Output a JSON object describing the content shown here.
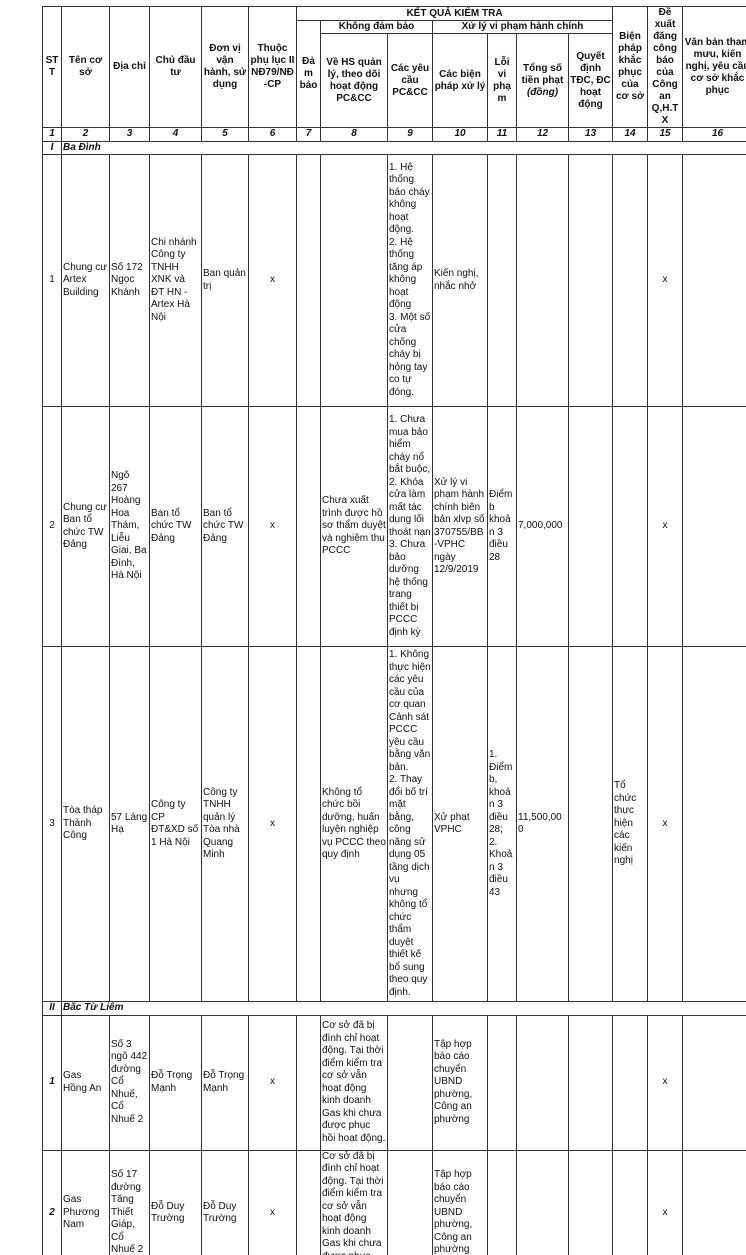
{
  "header": {
    "stt": "STT",
    "ten": "Tên cơ sở",
    "diachi": "Địa chỉ",
    "chudautu": "Chủ đầu tư",
    "donvi": "Đơn vị vận hành, sử dụng",
    "phuluc": "Thuộc phụ lục II NĐ79/NĐ-CP",
    "ketqua": "KẾT QUẢ KIỂM TRA",
    "khongdambao": "Không đảm bảo",
    "xuly": "Xử lý vi phạm hành chính",
    "dambao": "Đảm bảo",
    "hs": "Về HS quản lý, theo dõi hoạt động PC&CC",
    "yeucau": "Các yêu cầu PC&CC",
    "bienphapxl": "Các biện pháp xử lý",
    "loivp": "Lỗi vi phạm",
    "tongtien": "Tổng số tiền phạt",
    "dong": "(đồng)",
    "quyetdinh": "Quyết định TĐC, ĐC hoạt động",
    "bienphapkp": "Biện pháp khắc phục của cơ sở",
    "dexuat": "Đề xuất đăng công báo của Công an Q,H.TX",
    "vanban": "Văn bản tham mưu, kiến nghị, yêu cầu cơ sở khắc phục"
  },
  "col_numbers": [
    "1",
    "2",
    "3",
    "4",
    "5",
    "6",
    "7",
    "8",
    "9",
    "10",
    "11",
    "12",
    "13",
    "14",
    "15",
    "16"
  ],
  "sections": [
    {
      "roman": "I",
      "name": "Ba Đình",
      "rows": [
        {
          "stt": "1",
          "ten": "Chung cư Artex Building",
          "diachi": "Số 172 Ngọc Khánh",
          "chudautu": "Chi nhánh Công ty TNHH XNK và ĐT HN - Artex Hà Nội",
          "donvi": "Ban quản trị",
          "phuluc": "x",
          "dambao": "",
          "hs": "",
          "yeucau": "1. Hệ thống báo cháy không hoạt động.\n2. Hệ thống tăng áp không hoạt động\n3. Một số cửa chống cháy bị hỏng tay co tự đóng.",
          "bienphap": "Kiến nghị, nhắc nhở",
          "loi": "",
          "tien": "",
          "qd": "",
          "kp": "",
          "dexuat": "x",
          "vanban": ""
        },
        {
          "stt": "2",
          "ten": "Chung cư Ban tổ chức TW Đảng",
          "diachi": "Ngõ 267 Hoàng Hoa Thám, Liễu Giai, Ba Đình, Hà Nội",
          "chudautu": "Ban tổ chức TW Đảng",
          "donvi": "Ban tổ chức TW Đảng",
          "phuluc": "x",
          "dambao": "",
          "hs": "Chưa xuất trình được hồ sơ thẩm duyệt và nghiệm thu PCCC",
          "yeucau": "1. Chưa mua bảo hiểm cháy nổ bắt buộc,\n2. Khóa cửa làm mất tác dụng lối thoát nạn\n3. Chưa bảo dưỡng hệ thống trang thiết bị PCCC định kỳ",
          "bienphap": "Xử lý vi phạm hành chính biên bản xlvp số 370755/BB-VPHC ngày 12/9/2019",
          "loi": "Điểm b khoản 3 điều 28",
          "tien": "7,000,000",
          "qd": "",
          "kp": "",
          "dexuat": "x",
          "vanban": ""
        },
        {
          "stt": "3",
          "ten": "Tòa tháp Thành Công",
          "diachi": "57 Láng Hạ",
          "chudautu": "Công ty CP ĐT&XD số 1 Hà Nội",
          "donvi": "Công ty TNHH quản lý Tòa nhà Quang Minh",
          "phuluc": "x",
          "dambao": "",
          "hs": "Không tổ chức bồi dưỡng, huấn luyện nghiệp vụ PCCC theo quy định",
          "yeucau": "1. Không thực hiện các yêu cầu của cơ quan Cảnh sát PCCC yêu cầu bằng văn bản.\n2. Thay đổi bố trí mặt bằng, công năng sử dụng 05 tầng dịch vụ nhưng không tổ chức thẩm duyệt thiết kế bổ sung theo quy định.",
          "bienphap": "Xử phạt VPHC",
          "loi": "1. Điểm b, khoản 3 điều 28;\n2. Khoản 3 điều 43",
          "tien": "11,500,000",
          "qd": "",
          "kp": "Tổ chức thực hiện các kiến nghị",
          "dexuat": "x",
          "vanban": ""
        }
      ]
    },
    {
      "roman": "II",
      "name": "Bắc Từ Liêm",
      "rows": [
        {
          "stt": "1",
          "ten": "Gas Hồng An",
          "diachi": "Số 3 ngõ 442 đường Cổ Nhuế, Cổ Nhuế 2",
          "chudautu": "Đỗ Trọng Mạnh",
          "donvi": "Đỗ Trọng Mạnh",
          "phuluc": "x",
          "dambao": "",
          "hs": "Cơ sở đã bị đình chỉ hoạt động. Tại thời điểm kiểm tra cơ sở vẫn hoạt động kinh doanh Gas khi chưa được phục hồi hoạt động.",
          "yeucau": "",
          "bienphap": "Tập hợp báo cáo chuyển UBND phường, Công an phường",
          "loi": "",
          "tien": "",
          "qd": "",
          "kp": "",
          "dexuat": "x",
          "vanban": ""
        },
        {
          "stt": "2",
          "ten": "Gas Phương Nam",
          "diachi": "Số 17 đường Tăng Thiết Giáp, Cổ Nhuế 2",
          "chudautu": "Đỗ Duy Trường",
          "donvi": "Đỗ Duy Trường",
          "phuluc": "x",
          "dambao": "",
          "hs": "Cơ sở đã bị đình chỉ hoạt động. Tại thời điểm kiểm tra cơ sở vẫn hoạt động kinh doanh Gas khi chưa được phục hồi hoạt động.",
          "yeucau": "",
          "bienphap": "Tập hợp báo cáo chuyển UBND phường, Công an phường",
          "loi": "",
          "tien": "",
          "qd": "",
          "kp": "",
          "dexuat": "x",
          "vanban": ""
        }
      ]
    }
  ]
}
